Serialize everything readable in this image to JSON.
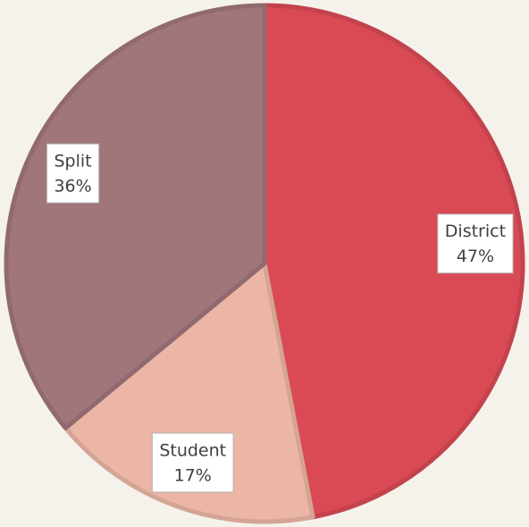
{
  "chart_data": {
    "type": "pie",
    "categories": [
      "District",
      "Student",
      "Split"
    ],
    "values": [
      47,
      17,
      36
    ],
    "value_labels": [
      "47%",
      "17%",
      "36%"
    ],
    "colors": [
      "#d94a55",
      "#ecb6a6",
      "#a0767b"
    ]
  }
}
